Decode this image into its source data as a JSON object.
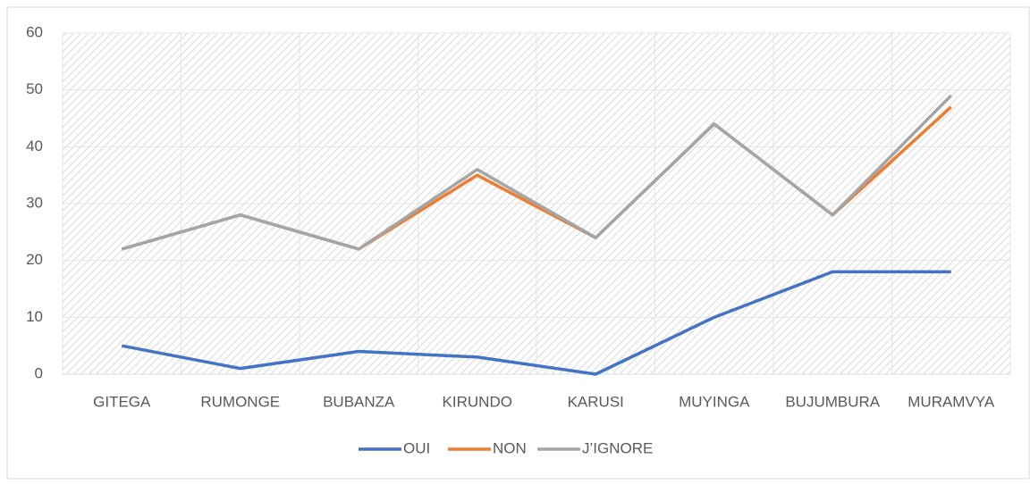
{
  "chart_data": {
    "type": "line",
    "categories": [
      "GITEGA",
      "RUMONGE",
      "BUBANZA",
      "KIRUNDO",
      "KARUSI",
      "MUYINGA",
      "BUJUMBURA",
      "MURAMVYA"
    ],
    "series": [
      {
        "name": "OUI",
        "color": "#4472c4",
        "values": [
          5,
          1,
          4,
          3,
          0,
          10,
          18,
          18
        ]
      },
      {
        "name": "NON",
        "color": "#ed7d31",
        "values": [
          22,
          28,
          22,
          35,
          24,
          44,
          28,
          47
        ]
      },
      {
        "name": "J’IGNORE",
        "color": "#a5a5a5",
        "values": [
          22,
          28,
          22,
          36,
          24,
          44,
          28,
          49
        ]
      }
    ],
    "ylim": [
      0,
      60
    ],
    "yticks": [
      0,
      10,
      20,
      30,
      40,
      50,
      60
    ],
    "grid": true,
    "legend": "bottom"
  }
}
